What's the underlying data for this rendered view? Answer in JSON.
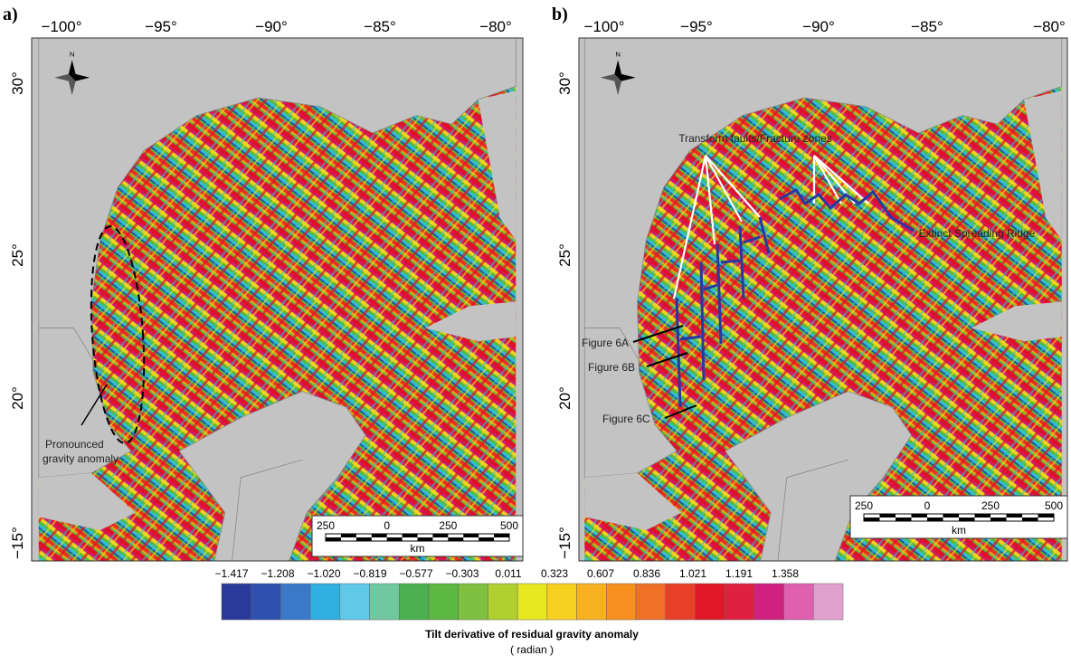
{
  "panels": [
    {
      "label": "a)",
      "lon_ticks": [
        "−100°",
        "−95°",
        "−90°",
        "−85°",
        "−80°"
      ],
      "lat_ticks": [
        "30°",
        "25°",
        "20°",
        "−15°"
      ],
      "annotations": [
        "Pronounced",
        "gravity anomaly"
      ],
      "scale_bar": {
        "ticks": [
          "250",
          "0",
          "250",
          "500"
        ],
        "unit": "km"
      }
    },
    {
      "label": "b)",
      "lon_ticks": [
        "−100°",
        "−95°",
        "−90°",
        "−85°",
        "−80°"
      ],
      "lat_ticks": [
        "30°",
        "25°",
        "20°",
        "−15°"
      ],
      "annotations": [
        "Transform faults/Fracture zones",
        "Extinct Spreading Ridge",
        "Figure 6A",
        "Figure 6B",
        "Figure 6C"
      ],
      "scale_bar": {
        "ticks": [
          "250",
          "0",
          "250",
          "500"
        ],
        "unit": "km"
      }
    }
  ],
  "colorbar": {
    "ticks": [
      "−1.417",
      "−1.208",
      "−1.020",
      "−0.819",
      "−0.577",
      "−0.303",
      "0.011",
      "0.323",
      "0.607",
      "0.836",
      "1.021",
      "1.191",
      "1.358"
    ],
    "title": "Tilt derivative of residual gravity anomaly",
    "unit": "( radian )"
  }
}
